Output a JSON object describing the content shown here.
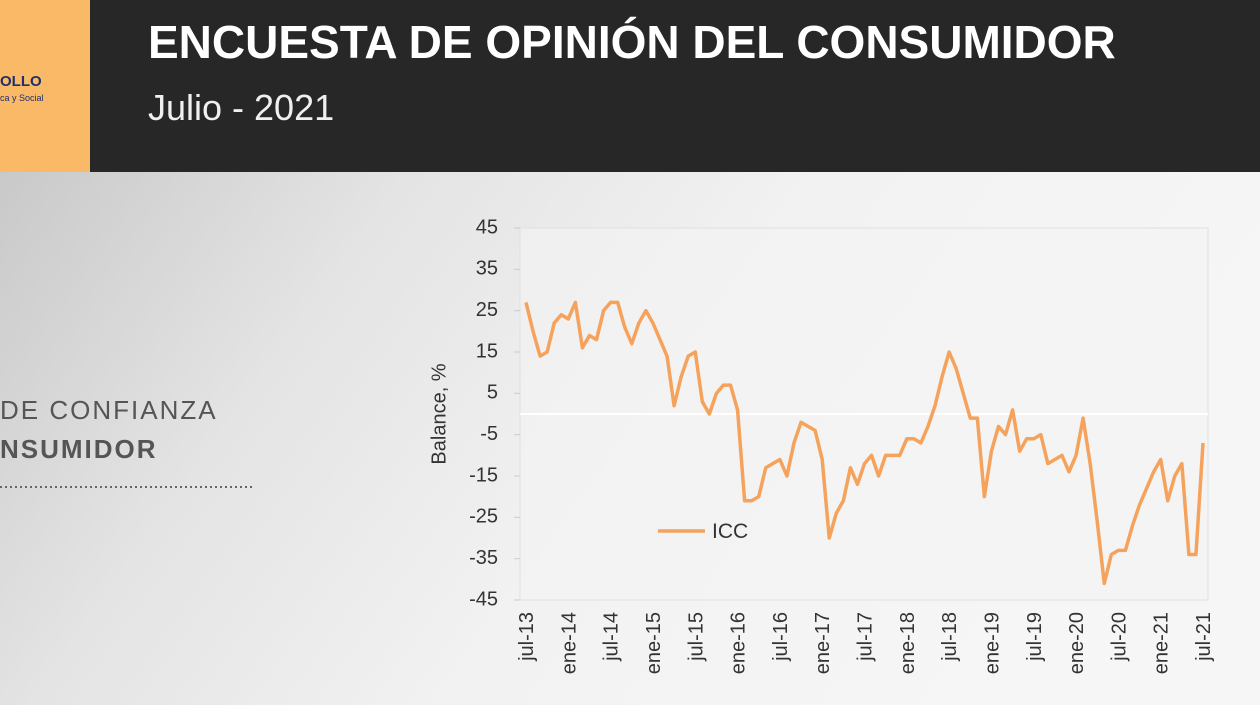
{
  "header": {
    "logo_line1": "OLLO",
    "logo_line2": "ca y Social",
    "title": "ENCUESTA DE OPINIÓN DEL CONSUMIDOR",
    "subtitle": "Julio - 2021"
  },
  "side": {
    "line1": "DE CONFIANZA",
    "line2": "NSUMIDOR"
  },
  "chart_data": {
    "type": "line",
    "ylabel": "Balance, %",
    "categories": [
      "jul-13",
      null,
      null,
      null,
      null,
      null,
      "ene-14",
      null,
      null,
      null,
      null,
      null,
      "jul-14",
      null,
      null,
      null,
      null,
      null,
      "ene-15",
      null,
      null,
      null,
      null,
      null,
      "jul-15",
      null,
      null,
      null,
      null,
      null,
      "ene-16",
      null,
      null,
      null,
      null,
      null,
      "jul-16",
      null,
      null,
      null,
      null,
      null,
      "ene-17",
      null,
      null,
      null,
      null,
      null,
      "jul-17",
      null,
      null,
      null,
      null,
      null,
      "ene-18",
      null,
      null,
      null,
      null,
      null,
      "jul-18",
      null,
      null,
      null,
      null,
      null,
      "ene-19",
      null,
      null,
      null,
      null,
      null,
      "jul-19",
      null,
      null,
      null,
      null,
      null,
      "ene-20",
      null,
      null,
      null,
      null,
      null,
      "jul-20",
      null,
      null,
      null,
      null,
      null,
      "ene-21",
      null,
      null,
      null,
      null,
      null,
      "jul-21"
    ],
    "series": [
      {
        "name": "ICC",
        "color": "#f5a35c",
        "values": [
          27,
          20,
          14,
          15,
          22,
          24,
          23,
          27,
          16,
          19,
          18,
          25,
          27,
          27,
          21,
          17,
          22,
          25,
          22,
          18,
          14,
          2,
          9,
          14,
          15,
          3,
          0,
          5,
          7,
          7,
          1,
          -21,
          -21,
          -20,
          -13,
          -12,
          -11,
          -15,
          -7,
          -2,
          -3,
          -4,
          -11,
          -30,
          -24,
          -21,
          -13,
          -17,
          -12,
          -10,
          -15,
          -10,
          -10,
          -10,
          -6,
          -6,
          -7,
          -3,
          2,
          9,
          15,
          11,
          5,
          -1,
          -1,
          -20,
          -9,
          -3,
          -5,
          1,
          -9,
          -6,
          -6,
          -5,
          -12,
          -11,
          -10,
          -14,
          -10,
          -1,
          -12,
          -26,
          -41,
          -34,
          -33,
          -33,
          -27,
          -22,
          -18,
          -14,
          -11,
          -21,
          -15,
          -12,
          -34,
          -34,
          -7
        ]
      }
    ],
    "ylim": [
      -45,
      45
    ],
    "yticks": [
      45,
      35,
      25,
      15,
      5,
      -5,
      -15,
      -25,
      -35,
      -45
    ],
    "legend": "lower-left"
  }
}
